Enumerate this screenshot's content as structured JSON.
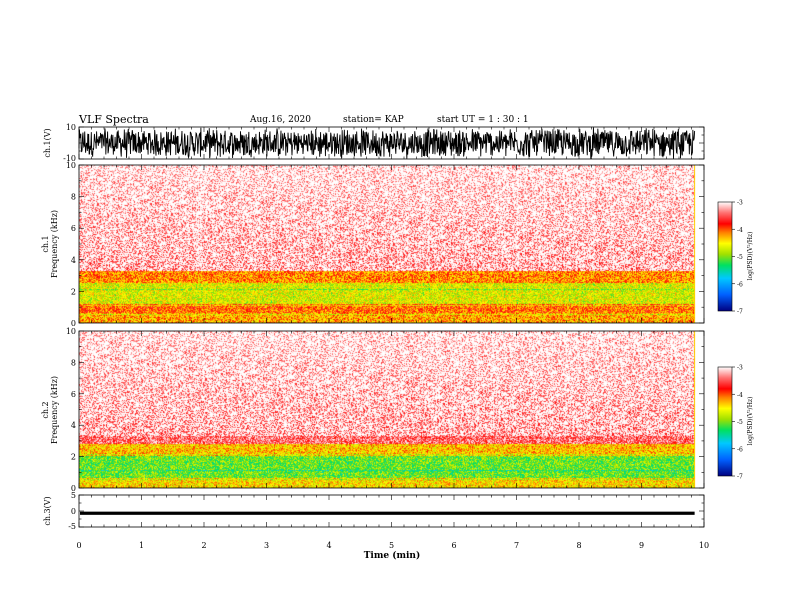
{
  "header": {
    "title": "VLF Spectra",
    "date": "Aug.16, 2020",
    "station": "station= KAP",
    "start": "start  UT =   1 : 30 : 1"
  },
  "colors": {
    "spectrogram_scale": [
      "#000080",
      "#0050ff",
      "#00d0ff",
      "#00e060",
      "#9be000",
      "#ffff00",
      "#ff8000",
      "#ff0000",
      "#ff6060",
      "#ffc8c8",
      "#ffffff"
    ]
  },
  "chart_data": [
    {
      "type": "line",
      "panel": "ch1-waveform",
      "ylabel": "ch.1(V)",
      "yticks": [
        "10",
        "-10"
      ],
      "ylim": [
        -10,
        10
      ],
      "x_range_min": [
        0,
        9.85
      ],
      "description_values": "dense noise waveform filling most of the range"
    },
    {
      "type": "heatmap",
      "panel": "ch1-spectrogram",
      "ylabel_ch": "ch.1",
      "ylabel": "Frequency  (kHz)",
      "yticks": [
        "0",
        "2",
        "4",
        "6",
        "8",
        "10"
      ],
      "ylim": [
        0,
        10
      ],
      "x_range_min": [
        0,
        9.85
      ],
      "bands": [
        {
          "from_khz": 0,
          "to_khz": 0.6,
          "log_psd": -4.2
        },
        {
          "from_khz": 0.6,
          "to_khz": 1.2,
          "log_psd": -4.0
        },
        {
          "from_khz": 1.2,
          "to_khz": 2.5,
          "log_psd": -4.6
        },
        {
          "from_khz": 2.5,
          "to_khz": 3.3,
          "log_psd": -4.1
        },
        {
          "from_khz": 3.3,
          "to_khz": 10,
          "log_psd": -3.4
        }
      ],
      "colorbar": {
        "label": "log(PSD)(V²/Hz)",
        "ticks": [
          "-3",
          "-4",
          "-5",
          "-6",
          "-7"
        ],
        "range": [
          -7,
          -3
        ]
      }
    },
    {
      "type": "heatmap",
      "panel": "ch2-spectrogram",
      "ylabel_ch": "ch.2",
      "ylabel": "Frequency  (kHz)",
      "yticks": [
        "0",
        "2",
        "4",
        "6",
        "8",
        "10"
      ],
      "ylim": [
        0,
        10
      ],
      "x_range_min": [
        0,
        9.85
      ],
      "bands": [
        {
          "from_khz": 0,
          "to_khz": 0.6,
          "log_psd": -4.4
        },
        {
          "from_khz": 0.6,
          "to_khz": 2.0,
          "log_psd": -5.0
        },
        {
          "from_khz": 2.0,
          "to_khz": 2.8,
          "log_psd": -4.3
        },
        {
          "from_khz": 2.8,
          "to_khz": 10,
          "log_psd": -3.4
        }
      ],
      "colorbar": {
        "label": "log(PSD)(V²/Hz)",
        "ticks": [
          "-3",
          "-4",
          "-5",
          "-6",
          "-7"
        ],
        "range": [
          -7,
          -3
        ]
      }
    },
    {
      "type": "line",
      "panel": "ch3-waveform",
      "ylabel": "ch.3(V)",
      "yticks": [
        "5",
        "0",
        "-5"
      ],
      "ylim": [
        -5,
        5
      ],
      "x_range_min": [
        0,
        9.85
      ],
      "level_v": [
        -1.2,
        -0.2
      ]
    }
  ],
  "xaxis": {
    "label": "Time  (min)",
    "ticks": [
      "0",
      "1",
      "2",
      "3",
      "4",
      "5",
      "6",
      "7",
      "8",
      "9",
      "10"
    ],
    "xlim": [
      0,
      10
    ]
  }
}
